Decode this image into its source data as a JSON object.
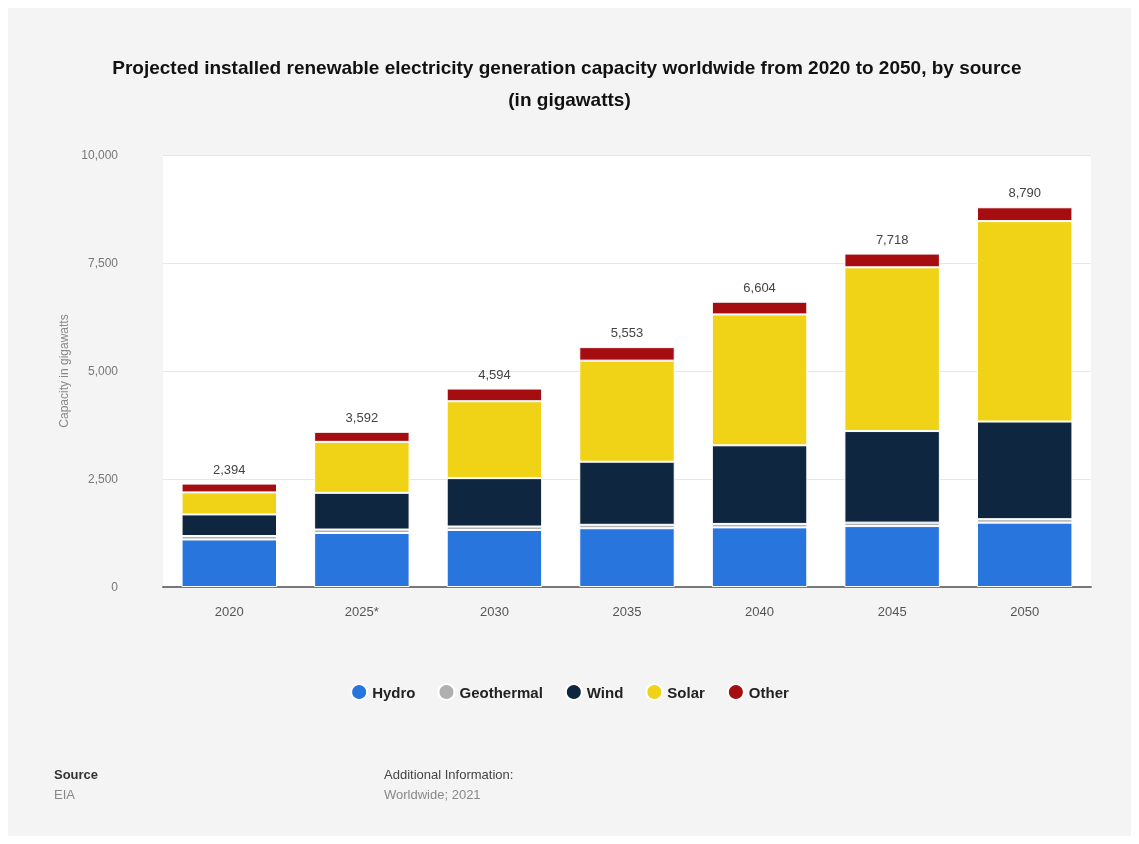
{
  "chart_data": {
    "type": "bar",
    "title": "Projected installed renewable electricity generation capacity worldwide from 2020 to 2050, by source (in gigawatts)",
    "ylabel": "Capacity in gigawatts",
    "categories": [
      "2020",
      "2025*",
      "2030",
      "2035",
      "2040",
      "2045",
      "2050"
    ],
    "stacked": true,
    "series": [
      {
        "name": "Hydro",
        "color": "#2876dd",
        "values": [
          1100,
          1250,
          1320,
          1360,
          1380,
          1410,
          1490
        ]
      },
      {
        "name": "Geothermal",
        "color": "#b0b0b0",
        "values": [
          80,
          80,
          80,
          80,
          80,
          80,
          80
        ]
      },
      {
        "name": "Wind",
        "color": "#0f2640",
        "values": [
          500,
          850,
          1120,
          1460,
          1820,
          2120,
          2260
        ]
      },
      {
        "name": "Solar",
        "color": "#f0d216",
        "values": [
          510,
          1180,
          1780,
          2340,
          3030,
          3790,
          4640
        ]
      },
      {
        "name": "Other",
        "color": "#a50d10",
        "values": [
          204,
          232,
          294,
          313,
          294,
          318,
          320
        ]
      }
    ],
    "totals": [
      "2,394",
      "3,592",
      "4,594",
      "5,553",
      "6,604",
      "7,718",
      "8,790"
    ],
    "ylim": [
      0,
      10000
    ],
    "yticks": [
      {
        "value": 0,
        "label": "0"
      },
      {
        "value": 2500,
        "label": "2,500"
      },
      {
        "value": 5000,
        "label": "5,000"
      },
      {
        "value": 7500,
        "label": "7,500"
      },
      {
        "value": 10000,
        "label": "10,000"
      }
    ],
    "grid": "y",
    "legend": "bottom",
    "annotations": [
      "Source",
      "EIA",
      "Additional Information:",
      "Worldwide; 2021"
    ]
  }
}
